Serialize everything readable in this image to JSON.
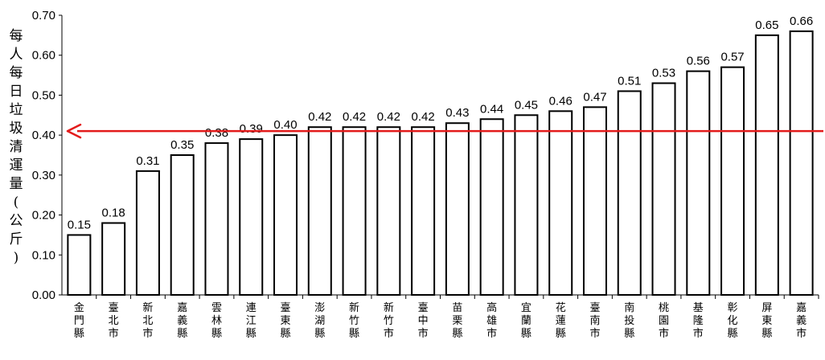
{
  "chart_data": {
    "type": "bar",
    "ylabel": "每人每日垃圾清運量(公斤)",
    "ylim": [
      0,
      0.7
    ],
    "yticks": [
      "0.00",
      "0.10",
      "0.20",
      "0.30",
      "0.40",
      "0.50",
      "0.60",
      "0.70"
    ],
    "categories": [
      "金門縣",
      "臺北市",
      "新北市",
      "嘉義縣",
      "雲林縣",
      "連江縣",
      "臺東縣",
      "澎湖縣",
      "新竹縣",
      "新竹市",
      "臺中市",
      "苗栗縣",
      "高雄市",
      "宜蘭縣",
      "花蓮縣",
      "臺南市",
      "南投縣",
      "桃園市",
      "基隆市",
      "彰化縣",
      "屏東縣",
      "嘉義市"
    ],
    "values": [
      0.15,
      0.18,
      0.31,
      0.35,
      0.38,
      0.39,
      0.4,
      0.42,
      0.42,
      0.42,
      0.42,
      0.43,
      0.44,
      0.45,
      0.46,
      0.47,
      0.51,
      0.53,
      0.56,
      0.57,
      0.65,
      0.66
    ],
    "labels": [
      "0.15",
      "0.18",
      "0.31",
      "0.35",
      "0.38",
      "0.39",
      "0.40",
      "0.42",
      "0.42",
      "0.42",
      "0.42",
      "0.43",
      "0.44",
      "0.45",
      "0.46",
      "0.47",
      "0.51",
      "0.53",
      "0.56",
      "0.57",
      "0.65",
      "0.66"
    ],
    "reference_line": {
      "value": 0.41,
      "color": "#e31b1b",
      "direction": "arrow-left"
    },
    "bar_fill": "#ffffff",
    "bar_stroke": "#000000",
    "grid": false
  }
}
